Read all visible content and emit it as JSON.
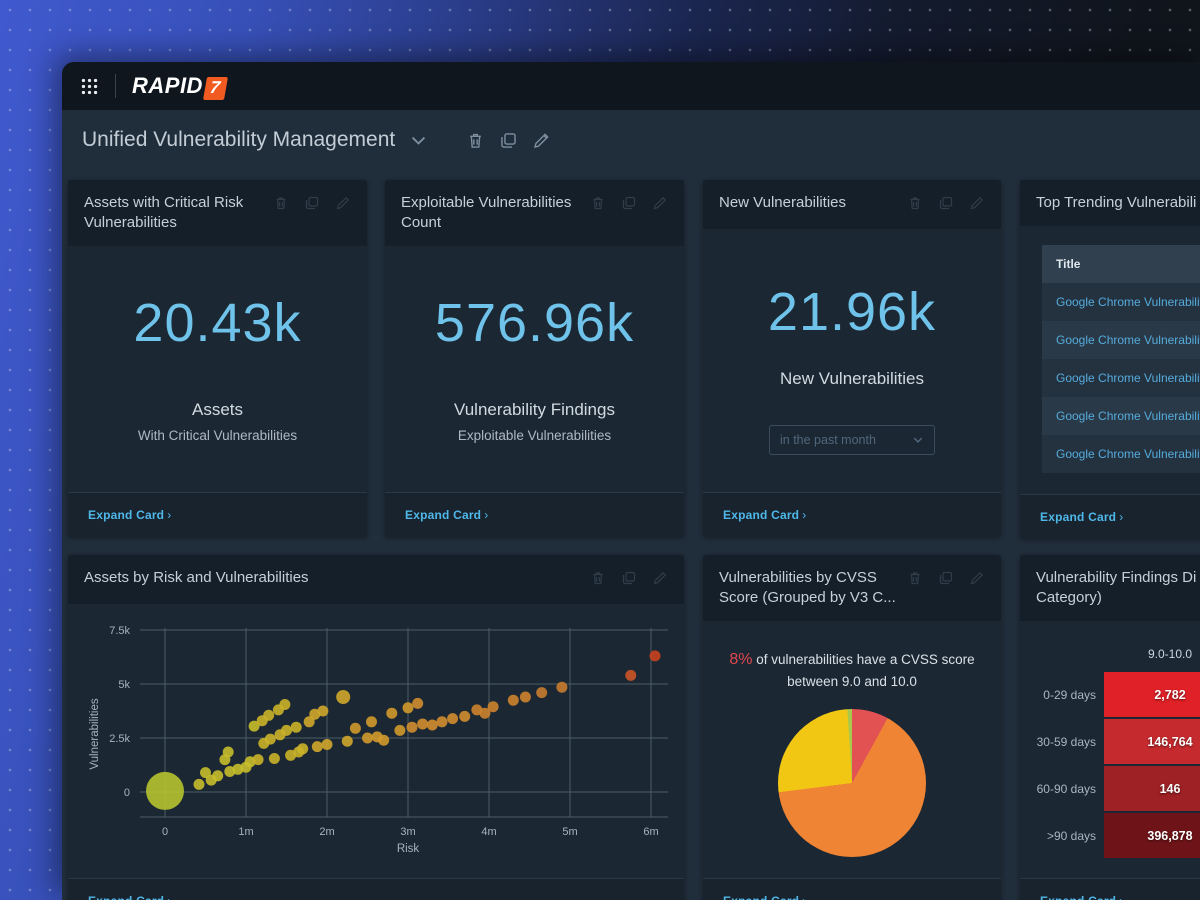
{
  "app": {
    "logo_rapid": "RAPID",
    "logo_seven": "7",
    "dashboard_title": "Unified Vulnerability Management"
  },
  "labels": {
    "expand_card": "Expand Card",
    "expand_chevron": "›"
  },
  "cards": {
    "assets_critical": {
      "title": "Assets with Critical Risk Vulnerabilities",
      "value": "20.43k",
      "label": "Assets",
      "sublabel": "With Critical Vulnerabilities"
    },
    "exploitable": {
      "title": "Exploitable Vulnerabilities Count",
      "value": "576.96k",
      "label": "Vulnerability Findings",
      "sublabel": "Exploitable Vulnerabilities"
    },
    "new_vulns": {
      "title": "New Vulnerabilities",
      "value": "21.96k",
      "label": "New Vulnerabilities",
      "filter_value": "in the past month"
    },
    "top_trending": {
      "title": "Top Trending Vulnerabili",
      "table_header": "Title",
      "rows": [
        "Google Chrome Vulnerabilit...",
        "Google Chrome Vulnerabilit...",
        "Google Chrome Vulnerabilit...",
        "Google Chrome Vulnerabilit...",
        "Google Chrome Vulnerabilit..."
      ]
    },
    "scatter_card": {
      "title": "Assets by Risk and Vulnerabilities"
    },
    "pie_card": {
      "title": "Vulnerabilities by CVSS Score (Grouped by V3 C...",
      "caption_highlight": "8%",
      "caption_rest": " of vulnerabilities have a CVSS score between 9.0 and 10.0"
    },
    "heatmap_card": {
      "title_line1": "Vulnerability Findings Di",
      "title_line2": "Category)"
    }
  },
  "chart_data": [
    {
      "id": "assets-by-risk-scatter",
      "type": "scatter",
      "title": "Assets by Risk and Vulnerabilities",
      "xlabel": "Risk",
      "ylabel": "Vulnerabilities",
      "x_ticks": [
        "0",
        "1m",
        "2m",
        "3m",
        "4m",
        "5m",
        "6m"
      ],
      "y_ticks": [
        "0",
        "2.5k",
        "5k",
        "7.5k"
      ],
      "xlim": [
        0,
        6.3
      ],
      "ylim": [
        0,
        7500
      ],
      "grid": true,
      "color_scale": [
        {
          "max_x": 0.25,
          "color": "#b6c32f"
        },
        {
          "max_x": 1.1,
          "color": "#c6bd2b"
        },
        {
          "max_x": 1.7,
          "color": "#cbb329"
        },
        {
          "max_x": 2.3,
          "color": "#cfa72a"
        },
        {
          "max_x": 3.0,
          "color": "#d29a2b"
        },
        {
          "max_x": 3.7,
          "color": "#d18d2d"
        },
        {
          "max_x": 4.5,
          "color": "#cd832e"
        },
        {
          "max_x": 5.1,
          "color": "#c87b2f"
        },
        {
          "max_x": 5.9,
          "color": "#cb5526"
        },
        {
          "max_x": 99,
          "color": "#c8421f"
        }
      ],
      "points": [
        {
          "x": 0.0,
          "y": 50,
          "r": 19
        },
        {
          "x": 0.42,
          "y": 350
        },
        {
          "x": 0.5,
          "y": 900
        },
        {
          "x": 0.57,
          "y": 550
        },
        {
          "x": 0.65,
          "y": 750
        },
        {
          "x": 0.74,
          "y": 1500
        },
        {
          "x": 0.78,
          "y": 1850
        },
        {
          "x": 0.8,
          "y": 950
        },
        {
          "x": 0.9,
          "y": 1050
        },
        {
          "x": 1.0,
          "y": 1150
        },
        {
          "x": 1.05,
          "y": 1400
        },
        {
          "x": 1.1,
          "y": 3050
        },
        {
          "x": 1.15,
          "y": 1500
        },
        {
          "x": 1.2,
          "y": 3300
        },
        {
          "x": 1.22,
          "y": 2250
        },
        {
          "x": 1.28,
          "y": 3550
        },
        {
          "x": 1.3,
          "y": 2450
        },
        {
          "x": 1.35,
          "y": 1550
        },
        {
          "x": 1.4,
          "y": 3800
        },
        {
          "x": 1.42,
          "y": 2650
        },
        {
          "x": 1.48,
          "y": 4050
        },
        {
          "x": 1.5,
          "y": 2850
        },
        {
          "x": 1.55,
          "y": 1700
        },
        {
          "x": 1.62,
          "y": 3000
        },
        {
          "x": 1.65,
          "y": 1850
        },
        {
          "x": 1.7,
          "y": 2000
        },
        {
          "x": 1.78,
          "y": 3250
        },
        {
          "x": 1.85,
          "y": 3600
        },
        {
          "x": 1.88,
          "y": 2100
        },
        {
          "x": 1.95,
          "y": 3750
        },
        {
          "x": 2.0,
          "y": 2200
        },
        {
          "x": 2.2,
          "y": 4400,
          "r": 7
        },
        {
          "x": 2.25,
          "y": 2350
        },
        {
          "x": 2.35,
          "y": 2950
        },
        {
          "x": 2.5,
          "y": 2500
        },
        {
          "x": 2.55,
          "y": 3250
        },
        {
          "x": 2.62,
          "y": 2550
        },
        {
          "x": 2.7,
          "y": 2400
        },
        {
          "x": 2.8,
          "y": 3650
        },
        {
          "x": 2.9,
          "y": 2850
        },
        {
          "x": 3.0,
          "y": 3900
        },
        {
          "x": 3.05,
          "y": 3000
        },
        {
          "x": 3.12,
          "y": 4100
        },
        {
          "x": 3.18,
          "y": 3150
        },
        {
          "x": 3.3,
          "y": 3100
        },
        {
          "x": 3.42,
          "y": 3250
        },
        {
          "x": 3.55,
          "y": 3400
        },
        {
          "x": 3.7,
          "y": 3500
        },
        {
          "x": 3.85,
          "y": 3800
        },
        {
          "x": 3.95,
          "y": 3650
        },
        {
          "x": 4.05,
          "y": 3950
        },
        {
          "x": 4.3,
          "y": 4250
        },
        {
          "x": 4.45,
          "y": 4400
        },
        {
          "x": 4.65,
          "y": 4600
        },
        {
          "x": 4.9,
          "y": 4850
        },
        {
          "x": 5.75,
          "y": 5400
        },
        {
          "x": 6.05,
          "y": 6300
        }
      ]
    },
    {
      "id": "cvss-score-pie",
      "type": "pie",
      "caption_highlight": "8%",
      "caption": "of vulnerabilities have a CVSS score between 9.0 and 10.0",
      "slices": [
        {
          "percent": 8,
          "color": "#e25252"
        },
        {
          "percent": 65,
          "color": "#ee8434"
        },
        {
          "percent": 26,
          "color": "#f1c713"
        },
        {
          "percent": 1,
          "color": "#a9c94d"
        }
      ]
    },
    {
      "id": "findings-by-age",
      "type": "heatmap",
      "column": "9.0-10.0",
      "rows": [
        {
          "label": "0-29 days",
          "value": "2,782",
          "color": "#e02127"
        },
        {
          "label": "30-59 days",
          "value": "146,764",
          "color": "#c52a2e"
        },
        {
          "label": "60-90 days",
          "value": "146",
          "color": "#9d2125"
        },
        {
          "label": ">90 days",
          "value": "396,878",
          "color": "#6e1418"
        }
      ]
    }
  ]
}
